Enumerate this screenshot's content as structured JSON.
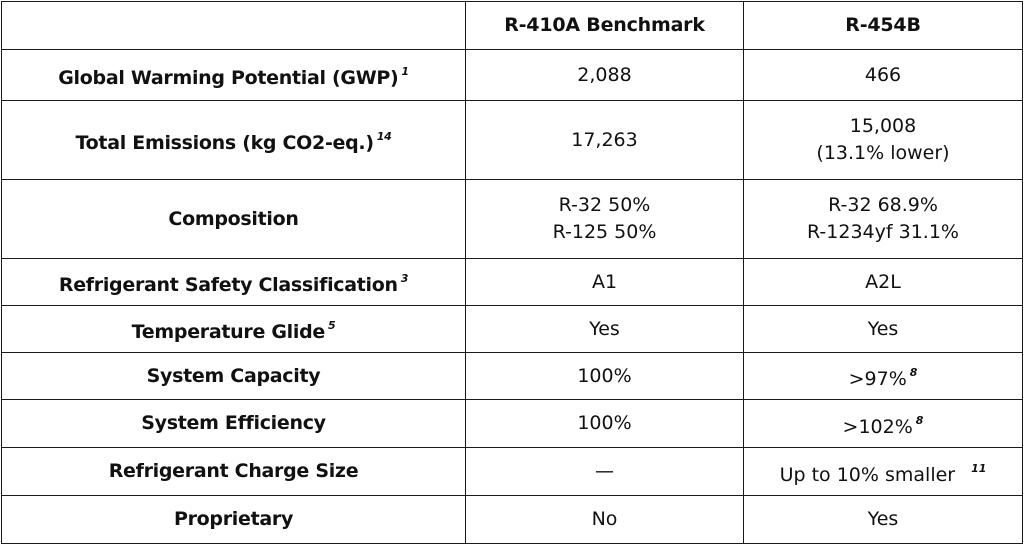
{
  "table": {
    "headers": [
      "",
      "R-410A Benchmark",
      "R-454B"
    ],
    "rows": [
      {
        "label": "Global Warming Potential (GWP)",
        "label_note": "1",
        "r410a": [
          "2,088"
        ],
        "r410a_note": "",
        "r454b": [
          "466"
        ],
        "r454b_note": ""
      },
      {
        "label": "Total Emissions (kg CO2-eq.)",
        "label_note": "14",
        "r410a": [
          "17,263"
        ],
        "r410a_note": "",
        "r454b": [
          "15,008",
          "(13.1% lower)"
        ],
        "r454b_note": ""
      },
      {
        "label": "Composition",
        "label_note": "",
        "r410a": [
          "R-32 50%",
          "R-125 50%"
        ],
        "r410a_note": "",
        "r454b": [
          "R-32 68.9%",
          "R-1234yf 31.1%"
        ],
        "r454b_note": ""
      },
      {
        "label": "Refrigerant Safety Classification",
        "label_note": "3",
        "r410a": [
          "A1"
        ],
        "r410a_note": "",
        "r454b": [
          "A2L"
        ],
        "r454b_note": ""
      },
      {
        "label": "Temperature Glide",
        "label_note": "5",
        "r410a": [
          "Yes"
        ],
        "r410a_note": "",
        "r454b": [
          "Yes"
        ],
        "r454b_note": ""
      },
      {
        "label": "System Capacity",
        "label_note": "",
        "r410a": [
          "100%"
        ],
        "r410a_note": "",
        "r454b": [
          ">97%"
        ],
        "r454b_note": "8"
      },
      {
        "label": "System Efficiency",
        "label_note": "",
        "r410a": [
          "100%"
        ],
        "r410a_note": "",
        "r454b": [
          ">102%"
        ],
        "r454b_note": "8"
      },
      {
        "label": "Refrigerant Charge Size",
        "label_note": "",
        "r410a": [
          "—"
        ],
        "r410a_note": "",
        "r454b": [
          "Up to 10% smaller"
        ],
        "r454b_note": "11"
      },
      {
        "label": "Proprietary",
        "label_note": "",
        "r410a": [
          "No"
        ],
        "r410a_note": "",
        "r454b": [
          "Yes"
        ],
        "r454b_note": ""
      }
    ]
  }
}
